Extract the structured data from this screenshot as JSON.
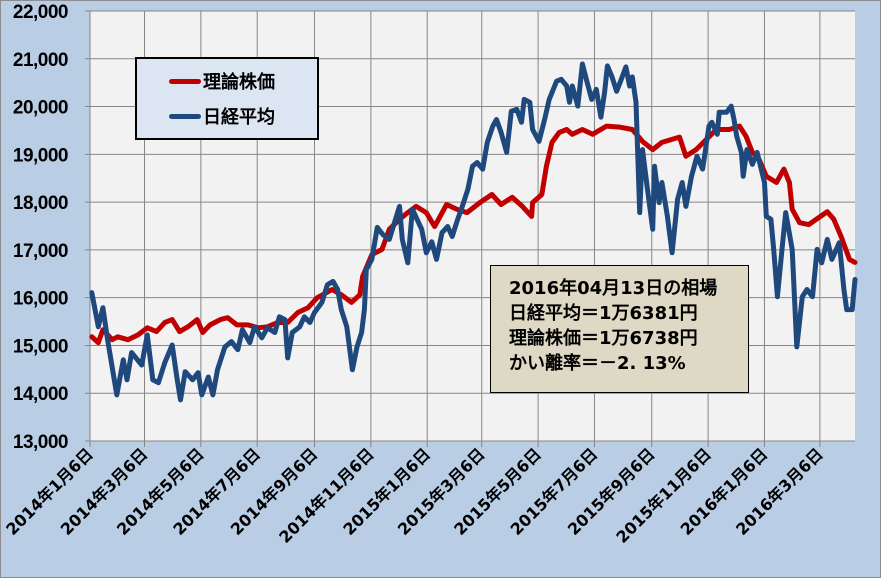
{
  "chart_data": {
    "type": "line",
    "title": "",
    "xlabel": "",
    "ylabel": "",
    "ylim": [
      13000,
      22000
    ],
    "yticks": [
      13000,
      14000,
      15000,
      16000,
      17000,
      18000,
      19000,
      20000,
      21000,
      22000
    ],
    "ytick_labels": [
      "13,000",
      "14,000",
      "15,000",
      "16,000",
      "17,000",
      "18,000",
      "19,000",
      "20,000",
      "21,000",
      "22,000"
    ],
    "xlim": [
      "2014-01-06",
      "2016-04-13"
    ],
    "xticks": [
      "2014-01-06",
      "2014-03-06",
      "2014-05-06",
      "2014-07-06",
      "2014-09-06",
      "2014-11-06",
      "2015-01-06",
      "2015-03-06",
      "2015-05-06",
      "2015-07-06",
      "2015-09-06",
      "2015-11-06",
      "2016-01-06",
      "2016-03-06"
    ],
    "xtick_labels": [
      "2014年1月6日",
      "2014年3月6日",
      "2014年5月6日",
      "2014年7月6日",
      "2014年9月6日",
      "2014年11月6日",
      "2015年1月6日",
      "2015年3月6日",
      "2015年5月6日",
      "2015年7月6日",
      "2015年9月6日",
      "2015年11月6日",
      "2016年1月6日",
      "2016年3月6日"
    ],
    "grid": true,
    "legend_placement": "top-left",
    "colors": {
      "plot_background": "#f2f2f2",
      "chart_background": "#b9cde5",
      "grid": "#868686"
    },
    "series": [
      {
        "name": "理論株価",
        "color": "#c00000",
        "points": [
          [
            "2014-01-08",
            15180
          ],
          [
            "2014-01-15",
            15060
          ],
          [
            "2014-01-20",
            15330
          ],
          [
            "2014-01-30",
            15120
          ],
          [
            "2014-02-05",
            15180
          ],
          [
            "2014-02-16",
            15120
          ],
          [
            "2014-02-27",
            15220
          ],
          [
            "2014-03-09",
            15370
          ],
          [
            "2014-03-19",
            15290
          ],
          [
            "2014-03-28",
            15480
          ],
          [
            "2014-04-05",
            15540
          ],
          [
            "2014-04-13",
            15290
          ],
          [
            "2014-04-22",
            15390
          ],
          [
            "2014-05-02",
            15540
          ],
          [
            "2014-05-08",
            15270
          ],
          [
            "2014-05-16",
            15430
          ],
          [
            "2014-05-27",
            15540
          ],
          [
            "2014-06-04",
            15580
          ],
          [
            "2014-06-14",
            15430
          ],
          [
            "2014-06-26",
            15430
          ],
          [
            "2014-07-07",
            15370
          ],
          [
            "2014-07-17",
            15390
          ],
          [
            "2014-07-28",
            15480
          ],
          [
            "2014-08-08",
            15480
          ],
          [
            "2014-08-19",
            15690
          ],
          [
            "2014-08-30",
            15790
          ],
          [
            "2014-09-09",
            16000
          ],
          [
            "2014-09-25",
            16170
          ],
          [
            "2014-10-05",
            16060
          ],
          [
            "2014-10-16",
            15900
          ],
          [
            "2014-10-25",
            16060
          ],
          [
            "2014-10-28",
            16440
          ],
          [
            "2014-11-07",
            16900
          ],
          [
            "2014-11-18",
            17010
          ],
          [
            "2014-11-26",
            17430
          ],
          [
            "2014-12-07",
            17640
          ],
          [
            "2014-12-16",
            17780
          ],
          [
            "2014-12-25",
            17910
          ],
          [
            "2015-01-05",
            17780
          ],
          [
            "2015-01-14",
            17490
          ],
          [
            "2015-01-27",
            17950
          ],
          [
            "2015-02-07",
            17850
          ],
          [
            "2015-02-18",
            17780
          ],
          [
            "2015-03-04",
            17990
          ],
          [
            "2015-03-17",
            18160
          ],
          [
            "2015-03-27",
            17950
          ],
          [
            "2015-04-08",
            18100
          ],
          [
            "2015-04-19",
            17910
          ],
          [
            "2015-04-29",
            17700
          ],
          [
            "2015-04-30",
            17990
          ],
          [
            "2015-05-10",
            18160
          ],
          [
            "2015-05-15",
            18750
          ],
          [
            "2015-05-21",
            19250
          ],
          [
            "2015-05-29",
            19460
          ],
          [
            "2015-06-06",
            19520
          ],
          [
            "2015-06-12",
            19420
          ],
          [
            "2015-06-23",
            19520
          ],
          [
            "2015-07-04",
            19420
          ],
          [
            "2015-07-19",
            19590
          ],
          [
            "2015-08-02",
            19570
          ],
          [
            "2015-08-16",
            19520
          ],
          [
            "2015-08-27",
            19270
          ],
          [
            "2015-09-07",
            19100
          ],
          [
            "2015-09-17",
            19250
          ],
          [
            "2015-10-06",
            19360
          ],
          [
            "2015-10-13",
            18960
          ],
          [
            "2015-10-24",
            19100
          ],
          [
            "2015-11-04",
            19310
          ],
          [
            "2015-11-15",
            19520
          ],
          [
            "2015-11-29",
            19520
          ],
          [
            "2015-12-10",
            19590
          ],
          [
            "2015-12-17",
            19380
          ],
          [
            "2015-12-24",
            19040
          ],
          [
            "2015-12-31",
            18900
          ],
          [
            "2016-01-08",
            18540
          ],
          [
            "2016-01-19",
            18410
          ],
          [
            "2016-01-27",
            18690
          ],
          [
            "2016-02-02",
            18410
          ],
          [
            "2016-02-05",
            17850
          ],
          [
            "2016-02-13",
            17570
          ],
          [
            "2016-02-23",
            17530
          ],
          [
            "2016-03-05",
            17680
          ],
          [
            "2016-03-14",
            17800
          ],
          [
            "2016-03-21",
            17640
          ],
          [
            "2016-03-29",
            17280
          ],
          [
            "2016-04-07",
            16800
          ],
          [
            "2016-04-13",
            16738
          ]
        ]
      },
      {
        "name": "日経平均",
        "color": "#1f497d",
        "points": [
          [
            "2014-01-08",
            16105
          ],
          [
            "2014-01-15",
            15390
          ],
          [
            "2014-01-20",
            15790
          ],
          [
            "2014-01-25",
            15120
          ],
          [
            "2014-02-04",
            13965
          ],
          [
            "2014-02-11",
            14700
          ],
          [
            "2014-02-15",
            14280
          ],
          [
            "2014-02-20",
            14850
          ],
          [
            "2014-03-03",
            14590
          ],
          [
            "2014-03-09",
            15220
          ],
          [
            "2014-03-15",
            14280
          ],
          [
            "2014-03-21",
            14220
          ],
          [
            "2014-03-28",
            14640
          ],
          [
            "2014-04-05",
            15010
          ],
          [
            "2014-04-10",
            14340
          ],
          [
            "2014-04-14",
            13860
          ],
          [
            "2014-04-19",
            14450
          ],
          [
            "2014-04-27",
            14280
          ],
          [
            "2014-05-03",
            14430
          ],
          [
            "2014-05-07",
            13965
          ],
          [
            "2014-05-14",
            14340
          ],
          [
            "2014-05-19",
            13965
          ],
          [
            "2014-05-24",
            14490
          ],
          [
            "2014-06-01",
            14970
          ],
          [
            "2014-06-08",
            15080
          ],
          [
            "2014-06-15",
            14910
          ],
          [
            "2014-06-20",
            15330
          ],
          [
            "2014-06-28",
            15060
          ],
          [
            "2014-07-03",
            15390
          ],
          [
            "2014-07-11",
            15160
          ],
          [
            "2014-07-17",
            15370
          ],
          [
            "2014-07-25",
            15270
          ],
          [
            "2014-07-30",
            15600
          ],
          [
            "2014-08-05",
            15540
          ],
          [
            "2014-08-08",
            14740
          ],
          [
            "2014-08-13",
            15270
          ],
          [
            "2014-08-21",
            15390
          ],
          [
            "2014-08-26",
            15600
          ],
          [
            "2014-09-01",
            15480
          ],
          [
            "2014-09-06",
            15690
          ],
          [
            "2014-09-14",
            15900
          ],
          [
            "2014-09-20",
            16270
          ],
          [
            "2014-09-26",
            16340
          ],
          [
            "2014-10-01",
            16170
          ],
          [
            "2014-10-05",
            15750
          ],
          [
            "2014-10-11",
            15390
          ],
          [
            "2014-10-17",
            14490
          ],
          [
            "2014-10-22",
            14970
          ],
          [
            "2014-10-27",
            15270
          ],
          [
            "2014-10-30",
            15750
          ],
          [
            "2014-11-01",
            16590
          ],
          [
            "2014-11-07",
            16800
          ],
          [
            "2014-11-13",
            17470
          ],
          [
            "2014-11-19",
            17320
          ],
          [
            "2014-11-26",
            17220
          ],
          [
            "2014-12-07",
            17910
          ],
          [
            "2014-12-10",
            17220
          ],
          [
            "2014-12-16",
            16730
          ],
          [
            "2014-12-21",
            17850
          ],
          [
            "2014-12-31",
            17430
          ],
          [
            "2015-01-05",
            16940
          ],
          [
            "2015-01-11",
            17170
          ],
          [
            "2015-01-16",
            16800
          ],
          [
            "2015-01-22",
            17360
          ],
          [
            "2015-01-28",
            17490
          ],
          [
            "2015-02-02",
            17280
          ],
          [
            "2015-02-08",
            17640
          ],
          [
            "2015-02-13",
            17910
          ],
          [
            "2015-02-19",
            18270
          ],
          [
            "2015-02-24",
            18750
          ],
          [
            "2015-03-01",
            18830
          ],
          [
            "2015-03-07",
            18690
          ],
          [
            "2015-03-12",
            19250
          ],
          [
            "2015-03-18",
            19590
          ],
          [
            "2015-03-22",
            19730
          ],
          [
            "2015-03-27",
            19460
          ],
          [
            "2015-04-02",
            19040
          ],
          [
            "2015-04-07",
            19900
          ],
          [
            "2015-04-13",
            19940
          ],
          [
            "2015-04-18",
            19670
          ],
          [
            "2015-04-21",
            20150
          ],
          [
            "2015-04-27",
            20090
          ],
          [
            "2015-04-30",
            19520
          ],
          [
            "2015-05-07",
            19270
          ],
          [
            "2015-05-13",
            19730
          ],
          [
            "2015-05-18",
            20150
          ],
          [
            "2015-05-26",
            20530
          ],
          [
            "2015-05-31",
            20570
          ],
          [
            "2015-06-06",
            20430
          ],
          [
            "2015-06-09",
            20090
          ],
          [
            "2015-06-12",
            20430
          ],
          [
            "2015-06-18",
            20010
          ],
          [
            "2015-06-23",
            20890
          ],
          [
            "2015-06-28",
            20510
          ],
          [
            "2015-07-03",
            20150
          ],
          [
            "2015-07-08",
            20360
          ],
          [
            "2015-07-13",
            19780
          ],
          [
            "2015-07-17",
            20300
          ],
          [
            "2015-07-20",
            20850
          ],
          [
            "2015-07-25",
            20620
          ],
          [
            "2015-07-30",
            20320
          ],
          [
            "2015-08-04",
            20570
          ],
          [
            "2015-08-09",
            20830
          ],
          [
            "2015-08-13",
            20430
          ],
          [
            "2015-08-16",
            20620
          ],
          [
            "2015-08-20",
            20090
          ],
          [
            "2015-08-24",
            17780
          ],
          [
            "2015-08-27",
            19100
          ],
          [
            "2015-09-01",
            18330
          ],
          [
            "2015-09-07",
            17430
          ],
          [
            "2015-09-09",
            18750
          ],
          [
            "2015-09-14",
            17990
          ],
          [
            "2015-09-17",
            18410
          ],
          [
            "2015-09-23",
            17700
          ],
          [
            "2015-09-28",
            16940
          ],
          [
            "2015-10-04",
            18060
          ],
          [
            "2015-10-09",
            18410
          ],
          [
            "2015-10-13",
            17910
          ],
          [
            "2015-10-19",
            18540
          ],
          [
            "2015-10-25",
            18960
          ],
          [
            "2015-10-31",
            18690
          ],
          [
            "2015-11-07",
            19590
          ],
          [
            "2015-11-10",
            19670
          ],
          [
            "2015-11-16",
            19420
          ],
          [
            "2015-11-18",
            19880
          ],
          [
            "2015-11-26",
            19880
          ],
          [
            "2015-12-01",
            20010
          ],
          [
            "2015-12-04",
            19730
          ],
          [
            "2015-12-07",
            19380
          ],
          [
            "2015-12-12",
            19040
          ],
          [
            "2015-12-14",
            18540
          ],
          [
            "2015-12-18",
            19100
          ],
          [
            "2015-12-24",
            18790
          ],
          [
            "2015-12-29",
            19040
          ],
          [
            "2016-01-06",
            18410
          ],
          [
            "2016-01-08",
            17700
          ],
          [
            "2016-01-13",
            17640
          ],
          [
            "2016-01-16",
            17010
          ],
          [
            "2016-01-20",
            16020
          ],
          [
            "2016-01-25",
            17010
          ],
          [
            "2016-01-29",
            17780
          ],
          [
            "2016-02-05",
            17010
          ],
          [
            "2016-02-10",
            14970
          ],
          [
            "2016-02-16",
            16020
          ],
          [
            "2016-02-21",
            16170
          ],
          [
            "2016-02-27",
            16020
          ],
          [
            "2016-03-03",
            17010
          ],
          [
            "2016-03-08",
            16730
          ],
          [
            "2016-03-14",
            17220
          ],
          [
            "2016-03-19",
            16800
          ],
          [
            "2016-03-27",
            17150
          ],
          [
            "2016-04-01",
            16170
          ],
          [
            "2016-04-04",
            15750
          ],
          [
            "2016-04-10",
            15750
          ],
          [
            "2016-04-13",
            16381
          ]
        ]
      }
    ],
    "legend": [
      "理論株価",
      "日経平均"
    ],
    "annotation": {
      "lines": [
        "2016年04月13日の相場",
        "日経平均＝1万6381円",
        "理論株価＝1万6738円",
        "かい離率＝－2. 13%"
      ],
      "background": "#ddd9c4"
    }
  }
}
